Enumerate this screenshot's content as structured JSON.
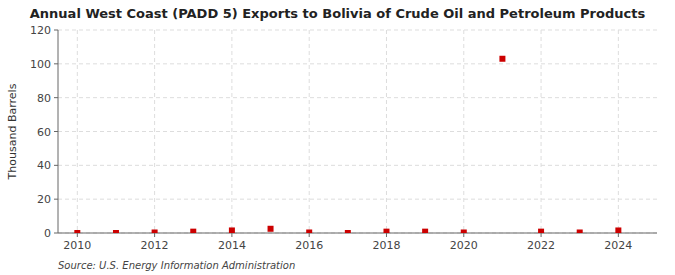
{
  "chart_data": {
    "type": "scatter",
    "title": "Annual West Coast (PADD 5) Exports to Bolivia of Crude Oil and Petroleum Products",
    "ylabel": "Thousand Barrels",
    "source": "Source: U.S. Energy Information Administration",
    "x": [
      2010,
      2011,
      2012,
      2013,
      2014,
      2015,
      2016,
      2017,
      2018,
      2019,
      2020,
      2021,
      2022,
      2023,
      2024
    ],
    "values": [
      0,
      0,
      0.3,
      0.8,
      1.5,
      2.5,
      0.3,
      0,
      0.8,
      0.8,
      0.3,
      103,
      0.8,
      0.3,
      1.5
    ],
    "color": "#cc0000",
    "marker": "square",
    "xlim": [
      2009.5,
      2025.0
    ],
    "ylim": [
      0,
      120
    ],
    "xticks": [
      2010,
      2012,
      2014,
      2016,
      2018,
      2020,
      2022,
      2024
    ],
    "yticks": [
      0,
      20,
      40,
      60,
      80,
      100,
      120
    ],
    "grid": true
  }
}
